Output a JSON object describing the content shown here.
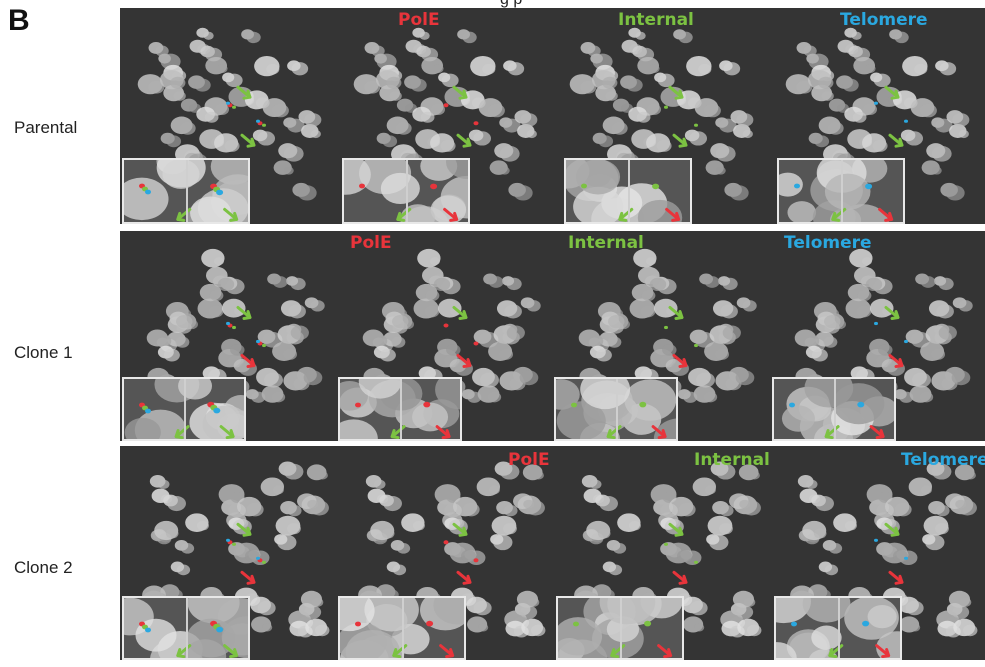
{
  "figure": {
    "panel_letter": "B",
    "top_caption": "g  p",
    "colors": {
      "pole": "#e8343b",
      "internal": "#7cc242",
      "telomere": "#2aa8e0",
      "background": "#343434"
    }
  },
  "rows": [
    {
      "label": "Parental",
      "channels": [
        "",
        "PolE",
        "Internal",
        "Telomere"
      ]
    },
    {
      "label": "Clone 1",
      "channels": [
        "",
        "PolE",
        "Internal",
        "Telomere"
      ]
    },
    {
      "label": "Clone 2",
      "channels": [
        "",
        "PolE",
        "Internal",
        "Telomere"
      ]
    }
  ]
}
